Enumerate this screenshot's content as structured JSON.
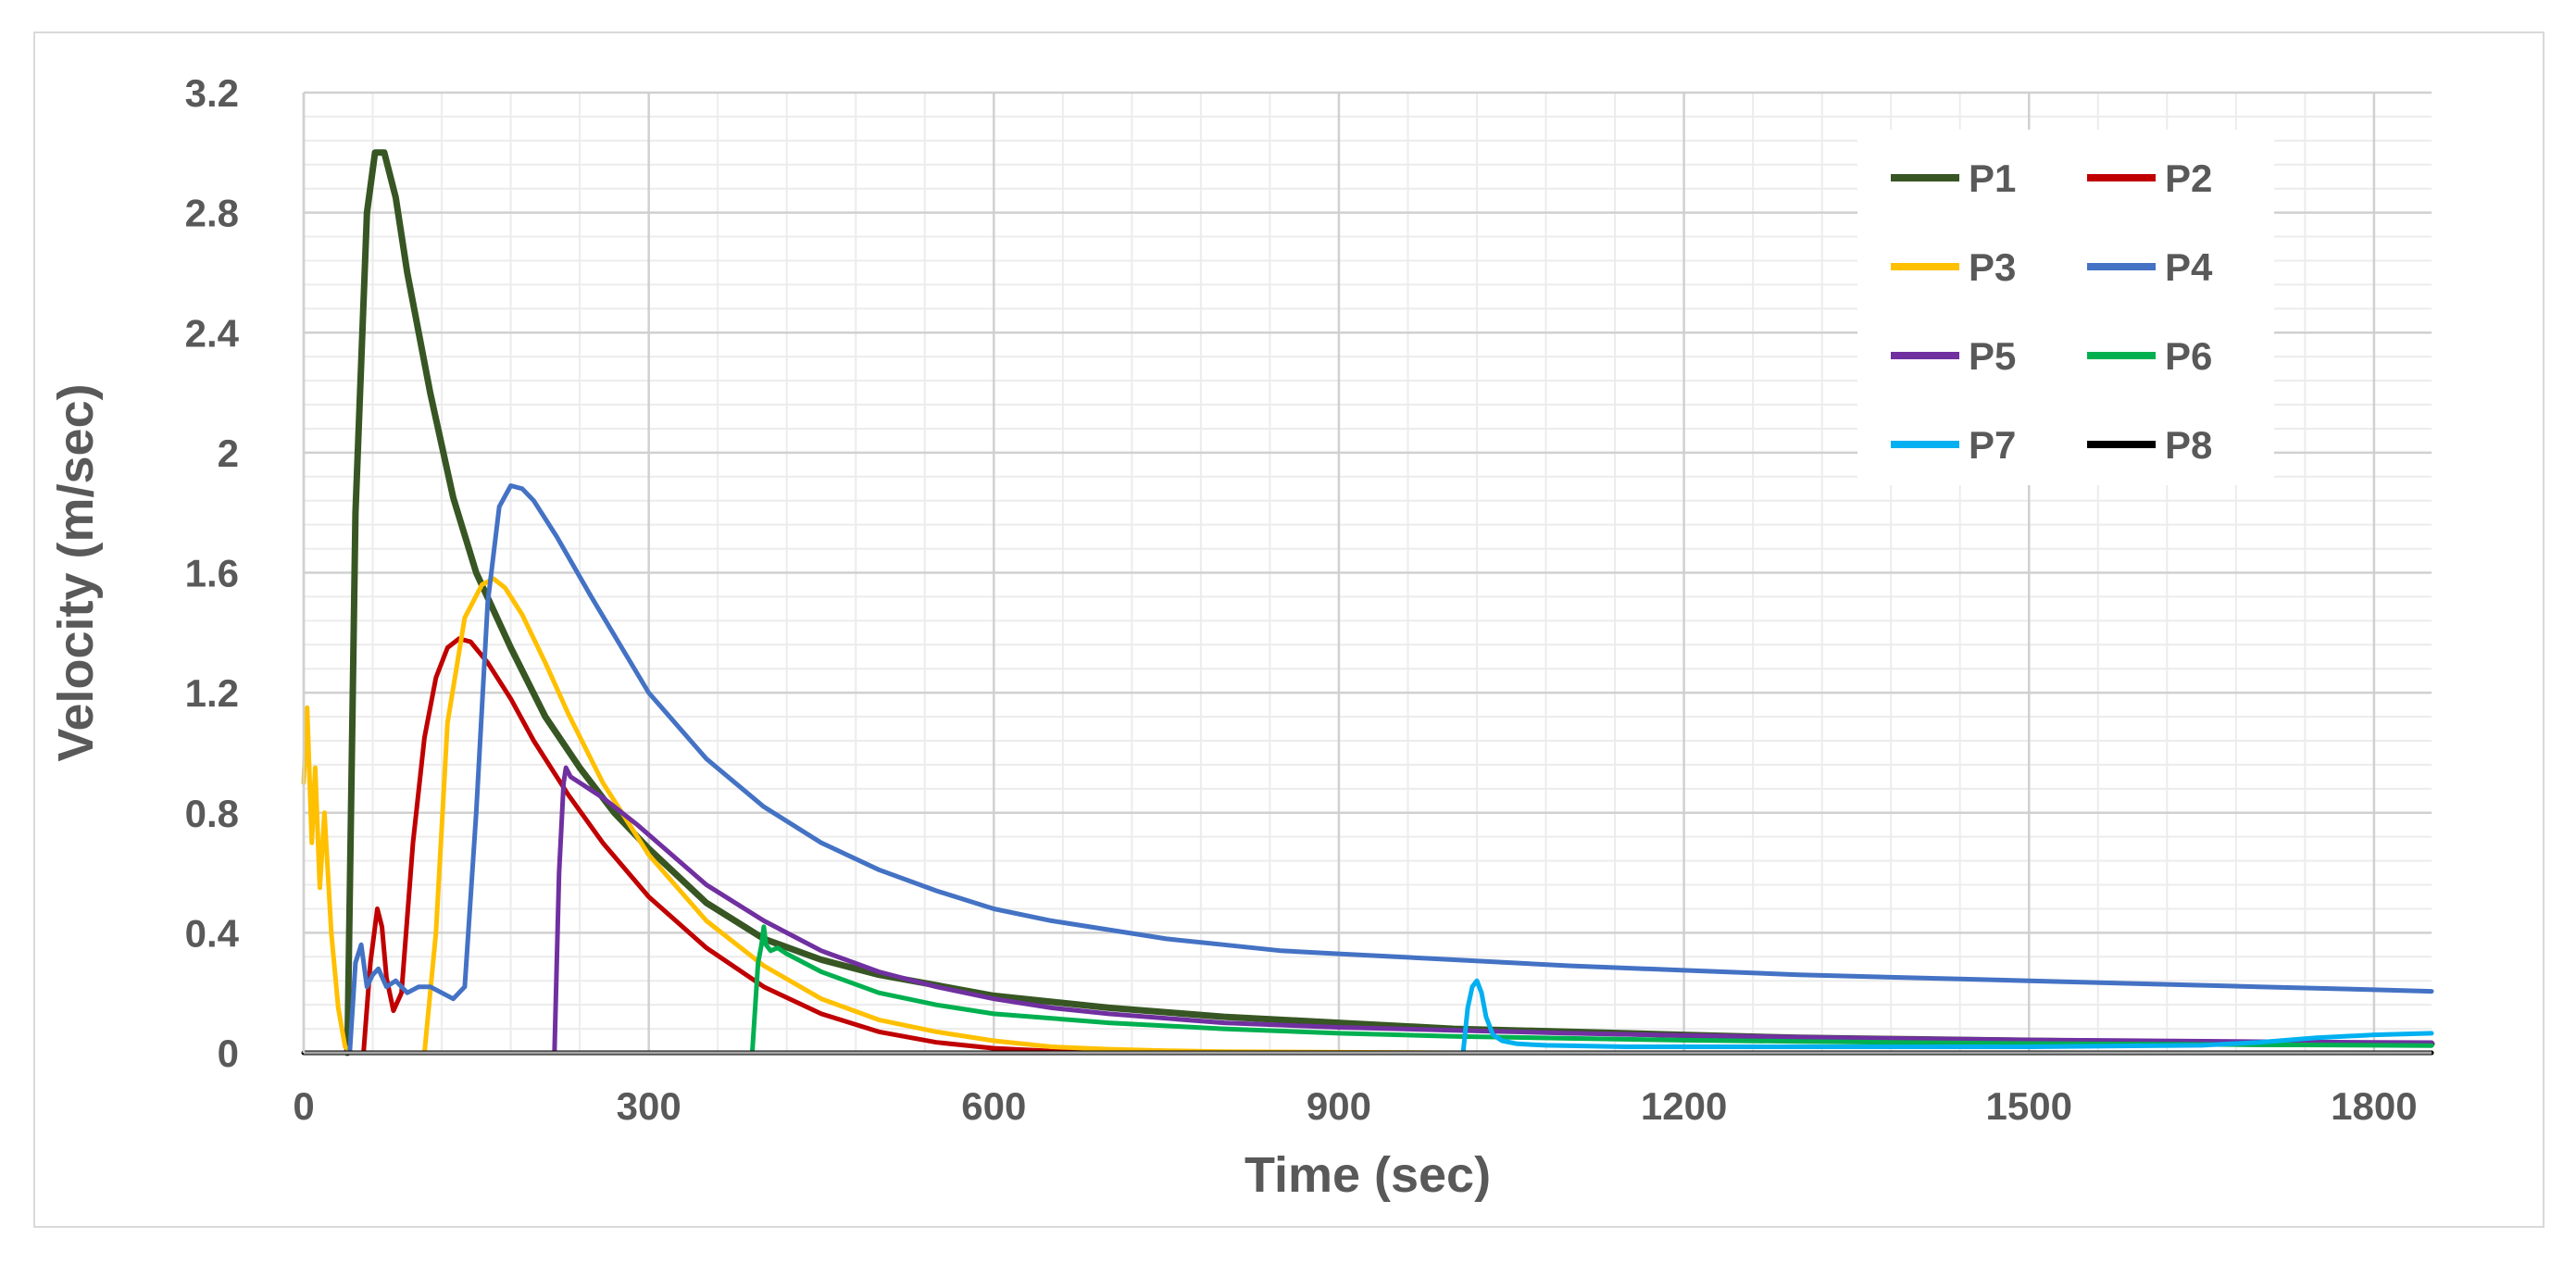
{
  "chart_data": {
    "type": "line",
    "title": "",
    "xlabel": "Time (sec)",
    "ylabel": "Velocity (m/sec)",
    "xlim": [
      0,
      1850
    ],
    "ylim": [
      0,
      3.2
    ],
    "x_ticks": [
      0,
      300,
      600,
      900,
      1200,
      1500,
      1800
    ],
    "y_ticks": [
      0,
      0.4,
      0.8,
      1.2,
      1.6,
      2,
      2.4,
      2.8,
      3.2
    ],
    "x_tick_labels": [
      "0",
      "300",
      "600",
      "900",
      "1200",
      "1500",
      "1800"
    ],
    "y_tick_labels": [
      "0",
      "0.4",
      "0.8",
      "1.2",
      "1.6",
      "2",
      "2.4",
      "2.8",
      "3.2"
    ],
    "grid": true,
    "minor_grid": true,
    "legend_position": "top-right",
    "series": [
      {
        "name": "P1",
        "color": "#375623",
        "x": [
          38,
          45,
          55,
          62,
          70,
          80,
          90,
          110,
          130,
          150,
          180,
          210,
          240,
          270,
          300,
          350,
          400,
          450,
          500,
          600,
          700,
          800,
          900,
          1000,
          1100,
          1200,
          1300,
          1400,
          1500,
          1600,
          1700,
          1800,
          1850
        ],
        "y": [
          0,
          1.8,
          2.8,
          3.0,
          3.0,
          2.85,
          2.6,
          2.2,
          1.85,
          1.6,
          1.35,
          1.12,
          0.95,
          0.8,
          0.68,
          0.5,
          0.38,
          0.31,
          0.26,
          0.19,
          0.15,
          0.12,
          0.1,
          0.08,
          0.07,
          0.06,
          0.05,
          0.045,
          0.04,
          0.035,
          0.03,
          0.03,
          0.03
        ]
      },
      {
        "name": "P2",
        "color": "#c00000",
        "x": [
          52,
          58,
          64,
          68,
          72,
          78,
          85,
          95,
          105,
          115,
          125,
          135,
          145,
          160,
          180,
          200,
          230,
          260,
          300,
          350,
          400,
          450,
          500,
          550,
          600,
          650,
          700,
          800,
          900,
          1000,
          1100,
          1200,
          1300,
          1400,
          1500,
          1600,
          1700,
          1800,
          1850
        ],
        "y": [
          0,
          0.3,
          0.48,
          0.42,
          0.25,
          0.14,
          0.2,
          0.7,
          1.05,
          1.25,
          1.35,
          1.38,
          1.37,
          1.3,
          1.18,
          1.04,
          0.86,
          0.7,
          0.52,
          0.35,
          0.22,
          0.13,
          0.07,
          0.035,
          0.015,
          0.006,
          0.002,
          0,
          0,
          0,
          0,
          0,
          0,
          0,
          0,
          0,
          0,
          0,
          0
        ]
      },
      {
        "name": "P3",
        "color": "#ffc000",
        "x": [
          0,
          3,
          7,
          10,
          14,
          18,
          24,
          30,
          36,
          42,
          105,
          115,
          125,
          140,
          155,
          165,
          175,
          190,
          210,
          230,
          260,
          300,
          350,
          400,
          450,
          500,
          550,
          600,
          650,
          700,
          750,
          800,
          900,
          1000,
          1100,
          1200,
          1300,
          1400,
          1500,
          1600,
          1700,
          1800,
          1850
        ],
        "y": [
          0.9,
          1.15,
          0.7,
          0.95,
          0.55,
          0.8,
          0.4,
          0.15,
          0.02,
          0,
          0,
          0.4,
          1.1,
          1.45,
          1.56,
          1.58,
          1.55,
          1.46,
          1.3,
          1.13,
          0.9,
          0.66,
          0.44,
          0.29,
          0.18,
          0.11,
          0.07,
          0.04,
          0.02,
          0.012,
          0.007,
          0.004,
          0.002,
          0,
          0,
          0,
          0,
          0,
          0,
          0,
          0,
          0,
          0
        ]
      },
      {
        "name": "P4",
        "color": "#4472c4",
        "x": [
          40,
          45,
          50,
          55,
          60,
          65,
          72,
          80,
          90,
          100,
          110,
          120,
          130,
          140,
          150,
          160,
          170,
          180,
          190,
          200,
          220,
          250,
          300,
          350,
          400,
          450,
          500,
          550,
          600,
          650,
          700,
          750,
          800,
          850,
          900,
          1000,
          1100,
          1200,
          1300,
          1400,
          1500,
          1600,
          1700,
          1800,
          1850
        ],
        "y": [
          0,
          0.3,
          0.36,
          0.22,
          0.26,
          0.28,
          0.22,
          0.24,
          0.2,
          0.22,
          0.22,
          0.2,
          0.18,
          0.22,
          0.8,
          1.5,
          1.82,
          1.89,
          1.88,
          1.84,
          1.72,
          1.52,
          1.2,
          0.98,
          0.82,
          0.7,
          0.61,
          0.54,
          0.48,
          0.44,
          0.41,
          0.38,
          0.36,
          0.34,
          0.33,
          0.31,
          0.29,
          0.275,
          0.26,
          0.25,
          0.24,
          0.23,
          0.22,
          0.21,
          0.205
        ]
      },
      {
        "name": "P5",
        "color": "#7030a0",
        "x": [
          218,
          222,
          226,
          228,
          232,
          240,
          260,
          290,
          320,
          350,
          400,
          450,
          500,
          550,
          600,
          650,
          700,
          800,
          900,
          1000,
          1100,
          1200,
          1300,
          1400,
          1500,
          1600,
          1700,
          1800,
          1850
        ],
        "y": [
          0,
          0.6,
          0.9,
          0.95,
          0.92,
          0.9,
          0.85,
          0.76,
          0.66,
          0.56,
          0.44,
          0.34,
          0.27,
          0.22,
          0.18,
          0.15,
          0.13,
          0.1,
          0.085,
          0.075,
          0.065,
          0.058,
          0.052,
          0.047,
          0.043,
          0.04,
          0.037,
          0.035,
          0.034
        ]
      },
      {
        "name": "P6",
        "color": "#00b050",
        "x": [
          390,
          395,
          398,
          400,
          402,
          406,
          412,
          420,
          450,
          500,
          550,
          600,
          700,
          800,
          900,
          1000,
          1100,
          1200,
          1300,
          1400,
          1500,
          1600,
          1700,
          1800,
          1850
        ],
        "y": [
          0,
          0.3,
          0.36,
          0.42,
          0.36,
          0.34,
          0.35,
          0.33,
          0.27,
          0.2,
          0.16,
          0.13,
          0.1,
          0.08,
          0.065,
          0.055,
          0.048,
          0.042,
          0.038,
          0.034,
          0.031,
          0.029,
          0.027,
          0.025,
          0.024
        ]
      },
      {
        "name": "P7",
        "color": "#00b0f0",
        "x": [
          1008,
          1012,
          1016,
          1020,
          1024,
          1028,
          1034,
          1042,
          1055,
          1080,
          1150,
          1300,
          1500,
          1650,
          1700,
          1750,
          1800,
          1850
        ],
        "y": [
          0,
          0.15,
          0.22,
          0.24,
          0.2,
          0.12,
          0.06,
          0.04,
          0.03,
          0.025,
          0.02,
          0.02,
          0.02,
          0.025,
          0.035,
          0.05,
          0.06,
          0.065
        ]
      },
      {
        "name": "P8",
        "color": "#000000",
        "x": [
          0,
          1850
        ],
        "y": [
          0,
          0
        ]
      }
    ]
  }
}
